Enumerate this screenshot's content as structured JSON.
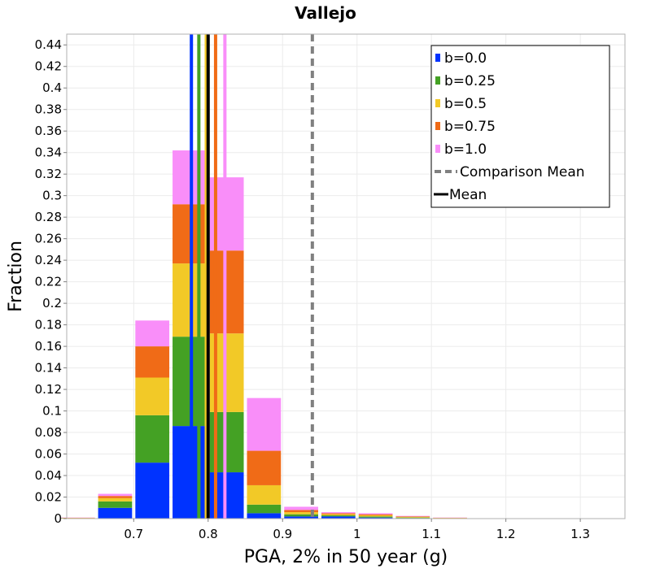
{
  "chart_data": {
    "type": "bar",
    "stacked": true,
    "title": "Vallejo",
    "xlabel": "PGA, 2% in 50 year (g)",
    "ylabel": "Fraction",
    "xlim": [
      0.61,
      1.36
    ],
    "ylim": [
      0,
      0.45
    ],
    "x_ticks": [
      0.7,
      0.8,
      0.9,
      1.0,
      1.1,
      1.2,
      1.3
    ],
    "x_tick_labels": [
      "0.7",
      "0.8",
      "0.9",
      "1",
      "1.1",
      "1.2",
      "1.3"
    ],
    "y_ticks": [
      0,
      0.02,
      0.04,
      0.06,
      0.08,
      0.1,
      0.12,
      0.14,
      0.16,
      0.18,
      0.2,
      0.22,
      0.24,
      0.26,
      0.28,
      0.3,
      0.32,
      0.34,
      0.36,
      0.38,
      0.4,
      0.42,
      0.44
    ],
    "y_tick_labels": [
      "0",
      "0.02",
      "0.04",
      "0.06",
      "0.08",
      "0.1",
      "0.12",
      "0.14",
      "0.16",
      "0.18",
      "0.2",
      "0.22",
      "0.24",
      "0.26",
      "0.28",
      "0.3",
      "0.32",
      "0.34",
      "0.36",
      "0.38",
      "0.4",
      "0.42",
      "0.44"
    ],
    "grid": true,
    "bin_width": 0.05,
    "bin_centers": [
      0.625,
      0.675,
      0.725,
      0.775,
      0.825,
      0.875,
      0.925,
      0.975,
      1.025,
      1.075,
      1.125
    ],
    "series": [
      {
        "name": "b=0.0",
        "color": "#0033ff",
        "values": [
          0.0002,
          0.01,
          0.052,
          0.086,
          0.043,
          0.005,
          0.002,
          0.002,
          0.001,
          0.0005,
          0.0002
        ],
        "mean": 0.7775
      },
      {
        "name": "b=0.25",
        "color": "#44a124",
        "values": [
          0.0002,
          0.006,
          0.044,
          0.083,
          0.056,
          0.008,
          0.002,
          0.001,
          0.001,
          0.0005,
          0.0002
        ],
        "mean": 0.7875
      },
      {
        "name": "b=0.5",
        "color": "#f2c927",
        "values": [
          0.0002,
          0.003,
          0.035,
          0.068,
          0.073,
          0.018,
          0.002,
          0.001,
          0.001,
          0.0005,
          0.0002
        ],
        "mean": 0.7975
      },
      {
        "name": "b=0.75",
        "color": "#f06b17",
        "values": [
          0.0002,
          0.002,
          0.029,
          0.055,
          0.077,
          0.032,
          0.002,
          0.001,
          0.001,
          0.0005,
          0.0002
        ],
        "mean": 0.81
      },
      {
        "name": "b=1.0",
        "color": "#f98ef9",
        "values": [
          0.0002,
          0.002,
          0.024,
          0.05,
          0.068,
          0.049,
          0.003,
          0.001,
          0.001,
          0.0005,
          0.0002
        ],
        "mean": 0.8225
      }
    ],
    "mean": 0.8,
    "comparison_mean": 0.94,
    "legend": {
      "placement": "top-right",
      "entries": [
        "b=0.0",
        "b=0.25",
        "b=0.5",
        "b=0.75",
        "b=1.0",
        "Comparison Mean",
        "Mean"
      ]
    },
    "colors": {
      "mean": "#000000",
      "comparison_mean": "#808080",
      "grid": "#ebebeb",
      "axis": "#b0b0b0"
    }
  }
}
